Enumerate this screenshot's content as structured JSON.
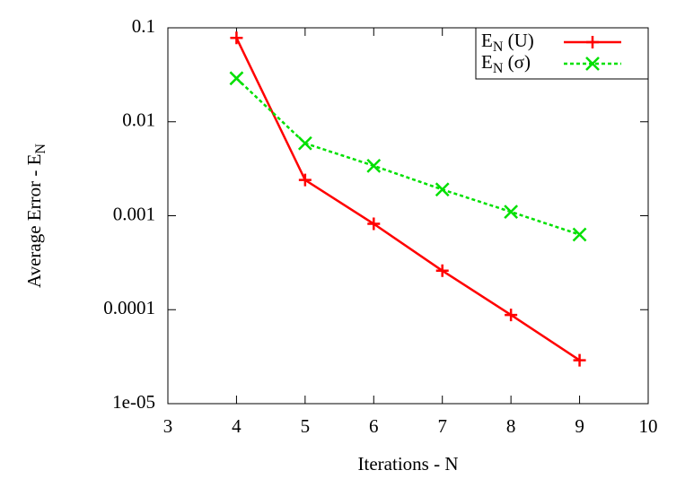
{
  "chart_data": {
    "type": "line",
    "x_label": "Iterations - N",
    "y_label": "Average Error - EN",
    "log_y": true,
    "legend": "top-right",
    "xlim": [
      3,
      10
    ],
    "xticks": [
      3,
      4,
      5,
      6,
      7,
      8,
      9,
      10
    ],
    "ylim": [
      1e-05,
      0.1
    ],
    "yticks": [
      {
        "value": 1e-05,
        "label": "1e-05"
      },
      0.0001,
      0.001,
      0.01,
      0.1
    ],
    "x": [
      4,
      5,
      6,
      7,
      8,
      9
    ],
    "series": [
      {
        "name": "EN (U)",
        "color": "#ff0000",
        "marker": "plus",
        "dashed": false,
        "values": [
          0.078,
          0.0024,
          0.00082,
          0.00026,
          8.8e-05,
          2.9e-05
        ]
      },
      {
        "name": "EN (σ)",
        "color": "#00e000",
        "marker": "cross",
        "dashed": true,
        "values": [
          0.029,
          0.0059,
          0.0034,
          0.0019,
          0.0011,
          0.00063
        ]
      }
    ]
  }
}
